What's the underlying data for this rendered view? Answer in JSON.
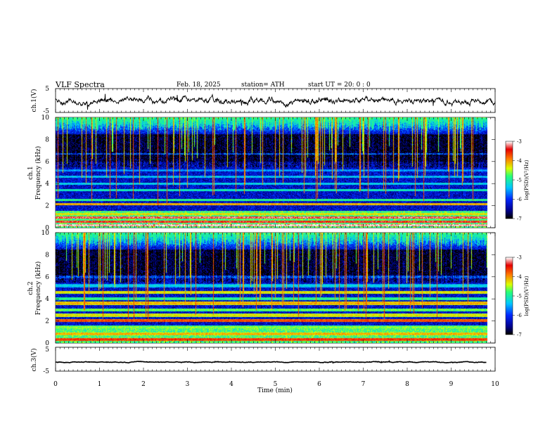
{
  "header": {
    "title": "VLF  Spectra",
    "date": "Feb. 18, 2025",
    "station": "station= ATH",
    "start": "start  UT  =   20: 0  : 0"
  },
  "chart_data": [
    {
      "type": "line",
      "name": "ch1-waveform",
      "ylabel": "ch.1(V)",
      "yticks": [
        "5",
        "-5"
      ],
      "ylim": [
        -5,
        5
      ],
      "xlim": [
        0,
        10
      ],
      "mean": 0,
      "noise_amplitude": 1.2
    },
    {
      "type": "heatmap",
      "name": "ch1-spectrogram",
      "ylabel": "ch.1\nFrequency  (kHz)",
      "ylabel_lines": [
        "ch.1",
        "Frequency  (kHz)"
      ],
      "yticks": [
        "0",
        "2",
        "4",
        "6",
        "8",
        "10"
      ],
      "ylim": [
        0,
        10
      ],
      "xlim": [
        0,
        9.8
      ],
      "colorbar": {
        "label": "log(PSD)(V²/Hz)",
        "ticks": [
          "-3",
          "-4",
          "-5",
          "-6",
          "-7"
        ],
        "range": [
          -7,
          -3
        ]
      },
      "bands_khz": [
        {
          "f": 0.2,
          "level": -3.0
        },
        {
          "f": 0.5,
          "level": -3.3
        },
        {
          "f": 0.9,
          "level": -3.2
        },
        {
          "f": 1.2,
          "level": -4.2
        },
        {
          "f": 2.1,
          "level": -4.0
        },
        {
          "f": 2.5,
          "level": -4.8
        },
        {
          "f": 3.4,
          "level": -5.0
        },
        {
          "f": 4.0,
          "level": -5.2
        },
        {
          "f": 4.6,
          "level": -5.3
        },
        {
          "f": 5.2,
          "level": -5.5
        },
        {
          "f": 6.7,
          "level": -5.6
        }
      ]
    },
    {
      "type": "heatmap",
      "name": "ch2-spectrogram",
      "ylabel": "ch.2\nFrequency  (kHz)",
      "ylabel_lines": [
        "ch.2",
        "Frequency  (kHz)"
      ],
      "yticks": [
        "0",
        "2",
        "4",
        "6",
        "8",
        "10"
      ],
      "ylim": [
        0,
        10
      ],
      "xlim": [
        0,
        9.8
      ],
      "colorbar": {
        "label": "log(PSD)(V²/Hz)",
        "ticks": [
          "-3",
          "-4",
          "-5",
          "-6",
          "-7"
        ],
        "range": [
          -7,
          -3
        ]
      },
      "bands_khz": [
        {
          "f": 0.3,
          "level": -3.5
        },
        {
          "f": 0.8,
          "level": -4.0
        },
        {
          "f": 1.4,
          "level": -4.6
        },
        {
          "f": 2.0,
          "level": -3.6
        },
        {
          "f": 2.5,
          "level": -4.2
        },
        {
          "f": 3.0,
          "level": -4.6
        },
        {
          "f": 3.6,
          "level": -4.0
        },
        {
          "f": 4.0,
          "level": -4.8
        },
        {
          "f": 4.6,
          "level": -4.2
        },
        {
          "f": 5.2,
          "level": -5.2
        },
        {
          "f": 6.0,
          "level": -5.6
        }
      ]
    },
    {
      "type": "line",
      "name": "ch3-waveform",
      "ylabel": "ch.3(V)",
      "yticks": [
        "5",
        "-5"
      ],
      "ylim": [
        -5,
        5
      ],
      "xlim": [
        0,
        9.8
      ],
      "mean": -1.2,
      "noise_amplitude": 0.15
    }
  ],
  "xaxis": {
    "label": "Time  (min)",
    "ticks": [
      "0",
      "1",
      "2",
      "3",
      "4",
      "5",
      "6",
      "7",
      "8",
      "9",
      "10"
    ],
    "range": [
      0,
      10
    ]
  }
}
